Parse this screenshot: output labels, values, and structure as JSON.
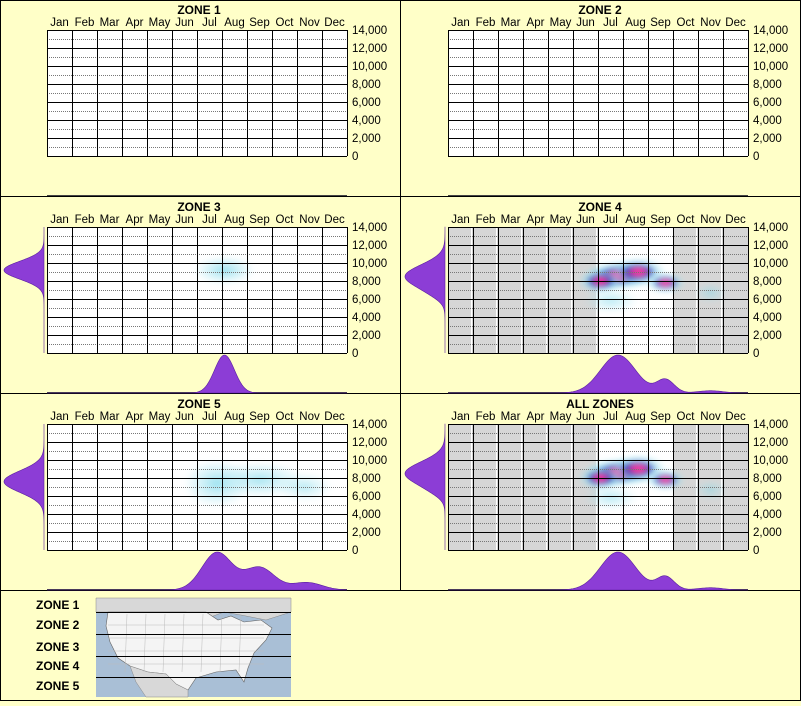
{
  "colors": {
    "background": "#ffffc8",
    "panel_border": "#000000",
    "kde_fill": "#8c3dd6",
    "heat_low": "#9fe3f0",
    "heat_mid": "#1f2cb8",
    "heat_high": "#ff2d96",
    "dormant_band": "#d6d6d6"
  },
  "months": [
    "Jan",
    "Feb",
    "Mar",
    "Apr",
    "May",
    "Jun",
    "Jul",
    "Aug",
    "Sep",
    "Oct",
    "Nov",
    "Dec"
  ],
  "y_ticks": [
    "14,000",
    "12,000",
    "10,000",
    "8,000",
    "6,000",
    "4,000",
    "2,000",
    "0"
  ],
  "ylim": [
    0,
    14000
  ],
  "chart_data": [
    {
      "type": "heatmap",
      "title": "ZONE 1",
      "x_axis": "month",
      "y_axis": "elevation",
      "ylim": [
        0,
        14000
      ],
      "shaded_months": [],
      "hotspots": [],
      "month_density": [],
      "elevation_density": []
    },
    {
      "type": "heatmap",
      "title": "ZONE 2",
      "x_axis": "month",
      "y_axis": "elevation",
      "ylim": [
        0,
        14000
      ],
      "shaded_months": [],
      "hotspots": [],
      "month_density": [],
      "elevation_density": []
    },
    {
      "type": "heatmap",
      "title": "ZONE 3",
      "x_axis": "month",
      "y_axis": "elevation",
      "ylim": [
        0,
        14000
      ],
      "shaded_months": [],
      "hotspots": [
        {
          "month": 7.6,
          "elevation": 9200,
          "intensity": 0.45,
          "sx": 0.55,
          "sy": 700
        }
      ],
      "month_density": [
        {
          "mean": 7.6,
          "sd": 0.4,
          "weight": 1.0
        }
      ],
      "elevation_density": [
        {
          "mean": 9200,
          "sd": 1000,
          "weight": 1.0
        }
      ]
    },
    {
      "type": "heatmap",
      "title": "ZONE 4",
      "x_axis": "month",
      "y_axis": "elevation",
      "ylim": [
        0,
        14000
      ],
      "shaded_months": [
        1,
        2,
        3,
        4,
        5,
        6,
        10,
        11,
        12
      ],
      "hotspots": [
        {
          "month": 7.3,
          "elevation": 8600,
          "intensity": 1.0,
          "sx": 0.6,
          "sy": 700
        },
        {
          "month": 6.6,
          "elevation": 8000,
          "intensity": 0.6,
          "sx": 0.4,
          "sy": 600
        },
        {
          "month": 8.1,
          "elevation": 9000,
          "intensity": 0.55,
          "sx": 0.5,
          "sy": 700
        },
        {
          "month": 9.2,
          "elevation": 7800,
          "intensity": 0.5,
          "sx": 0.35,
          "sy": 500
        },
        {
          "month": 7.0,
          "elevation": 5800,
          "intensity": 0.18,
          "sx": 0.5,
          "sy": 600
        },
        {
          "month": 11.0,
          "elevation": 6700,
          "intensity": 0.15,
          "sx": 0.3,
          "sy": 500
        }
      ],
      "month_density": [
        {
          "mean": 7.3,
          "sd": 0.7,
          "weight": 1.0
        },
        {
          "mean": 9.2,
          "sd": 0.35,
          "weight": 0.35
        },
        {
          "mean": 11.0,
          "sd": 0.5,
          "weight": 0.06
        }
      ],
      "elevation_density": [
        {
          "mean": 8500,
          "sd": 1300,
          "weight": 1.0
        },
        {
          "mean": 6500,
          "sd": 700,
          "weight": 0.1
        }
      ]
    },
    {
      "type": "heatmap",
      "title": "ZONE 5",
      "x_axis": "month",
      "y_axis": "elevation",
      "ylim": [
        0,
        14000
      ],
      "shaded_months": [],
      "hotspots": [
        {
          "month": 7.3,
          "elevation": 7400,
          "intensity": 0.4,
          "sx": 0.6,
          "sy": 1200
        },
        {
          "month": 9.0,
          "elevation": 7800,
          "intensity": 0.3,
          "sx": 0.8,
          "sy": 900
        },
        {
          "month": 10.8,
          "elevation": 7000,
          "intensity": 0.18,
          "sx": 0.5,
          "sy": 700
        }
      ],
      "month_density": [
        {
          "mean": 7.3,
          "sd": 0.6,
          "weight": 1.0
        },
        {
          "mean": 9.0,
          "sd": 0.6,
          "weight": 0.6
        },
        {
          "mean": 10.9,
          "sd": 0.6,
          "weight": 0.2
        }
      ],
      "elevation_density": [
        {
          "mean": 7600,
          "sd": 1200,
          "weight": 1.0
        }
      ]
    },
    {
      "type": "heatmap",
      "title": "ALL ZONES",
      "x_axis": "month",
      "y_axis": "elevation",
      "ylim": [
        0,
        14000
      ],
      "shaded_months": [
        1,
        2,
        3,
        4,
        5,
        6,
        10,
        11,
        12
      ],
      "hotspots": [
        {
          "month": 7.3,
          "elevation": 8600,
          "intensity": 1.0,
          "sx": 0.6,
          "sy": 700
        },
        {
          "month": 6.6,
          "elevation": 8000,
          "intensity": 0.6,
          "sx": 0.4,
          "sy": 600
        },
        {
          "month": 8.1,
          "elevation": 9000,
          "intensity": 0.55,
          "sx": 0.5,
          "sy": 700
        },
        {
          "month": 9.2,
          "elevation": 7800,
          "intensity": 0.5,
          "sx": 0.35,
          "sy": 500
        },
        {
          "month": 7.0,
          "elevation": 5800,
          "intensity": 0.18,
          "sx": 0.5,
          "sy": 600
        },
        {
          "month": 11.0,
          "elevation": 6700,
          "intensity": 0.15,
          "sx": 0.3,
          "sy": 500
        }
      ],
      "month_density": [
        {
          "mean": 7.3,
          "sd": 0.7,
          "weight": 1.0
        },
        {
          "mean": 9.2,
          "sd": 0.35,
          "weight": 0.35
        },
        {
          "mean": 11.0,
          "sd": 0.5,
          "weight": 0.06
        }
      ],
      "elevation_density": [
        {
          "mean": 8500,
          "sd": 1300,
          "weight": 1.0
        },
        {
          "mean": 6500,
          "sd": 700,
          "weight": 0.1
        }
      ]
    }
  ],
  "legend": {
    "zones": [
      "ZONE 1",
      "ZONE 2",
      "ZONE 3",
      "ZONE 4",
      "ZONE 5"
    ],
    "map_icon": "us-map-icon"
  }
}
